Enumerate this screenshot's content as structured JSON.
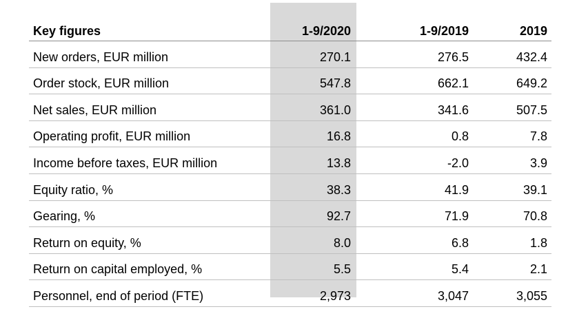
{
  "table": {
    "headers": [
      "Key figures",
      "1-9/2020",
      "1-9/2019",
      "2019"
    ],
    "highlight_color": "#d9d9d9",
    "rows": [
      {
        "label": "New orders, EUR million",
        "values": [
          "270.1",
          "276.5",
          "432.4"
        ]
      },
      {
        "label": "Order stock, EUR million",
        "values": [
          "547.8",
          "662.1",
          "649.2"
        ]
      },
      {
        "label": "Net sales, EUR million",
        "values": [
          "361.0",
          "341.6",
          "507.5"
        ]
      },
      {
        "label": "Operating profit, EUR million",
        "values": [
          "16.8",
          "0.8",
          "7.8"
        ]
      },
      {
        "label": "Income before taxes, EUR million",
        "values": [
          "13.8",
          "-2.0",
          "3.9"
        ]
      },
      {
        "label": "Equity ratio, %",
        "values": [
          "38.3",
          "41.9",
          "39.1"
        ]
      },
      {
        "label": "Gearing, %",
        "values": [
          "92.7",
          "71.9",
          "70.8"
        ]
      },
      {
        "label": "Return on equity, %",
        "values": [
          "8.0",
          "6.8",
          "1.8"
        ]
      },
      {
        "label": "Return on capital employed, %",
        "values": [
          "5.5",
          "5.4",
          "2.1"
        ]
      },
      {
        "label": "Personnel, end of period (FTE)",
        "values": [
          "2,973",
          "3,047",
          "3,055"
        ]
      }
    ]
  }
}
